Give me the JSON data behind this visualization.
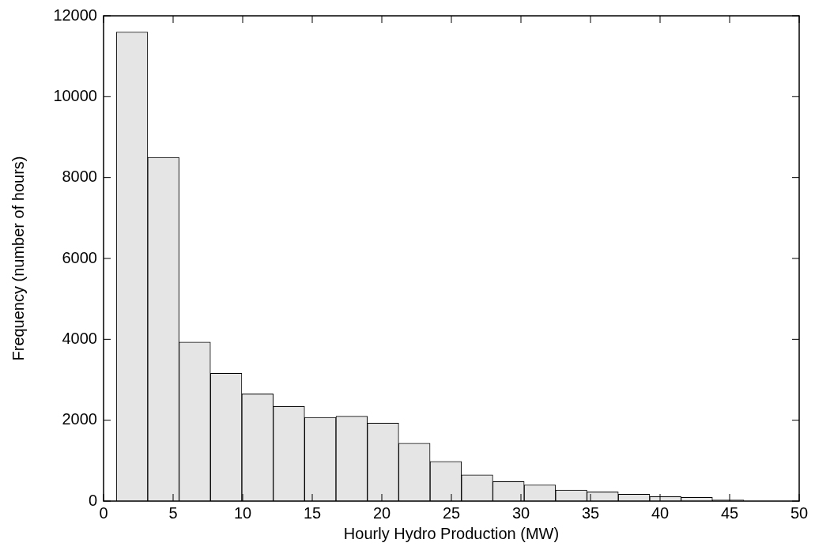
{
  "chart_data": {
    "type": "histogram",
    "xlabel": "Hourly Hydro Production (MW)",
    "ylabel": "Frequency (number of hours)",
    "bins": [
      0.92,
      3.175,
      5.43,
      7.685,
      9.94,
      12.195,
      14.45,
      16.705,
      18.96,
      21.215,
      23.47,
      25.725,
      27.98,
      30.235,
      32.49,
      34.745,
      37,
      39.255,
      41.51,
      43.765,
      46.02
    ],
    "values": [
      11600,
      8500,
      3930,
      3160,
      2650,
      2340,
      2070,
      2100,
      1930,
      1430,
      980,
      650,
      480,
      400,
      270,
      230,
      170,
      110,
      90,
      30
    ],
    "color": "#e5e5e5",
    "xlim": [
      0,
      50
    ],
    "xticks": [
      0,
      5,
      10,
      15,
      20,
      25,
      30,
      35,
      40,
      45,
      50
    ],
    "ylim": [
      0,
      12000
    ],
    "yticks": [
      0,
      2000,
      4000,
      6000,
      8000,
      10000,
      12000
    ],
    "grid": false,
    "legend": false
  }
}
